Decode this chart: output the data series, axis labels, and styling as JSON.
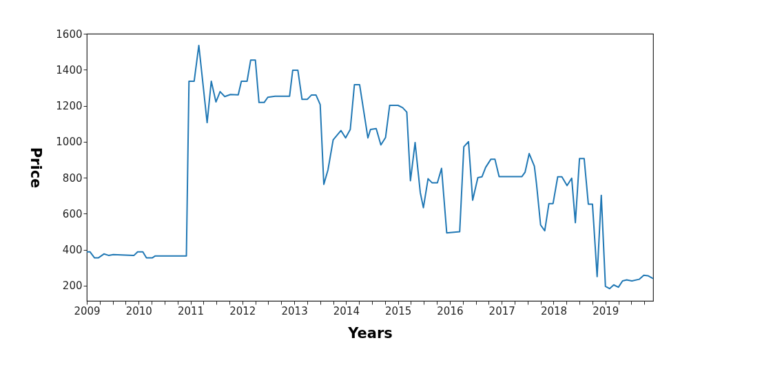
{
  "chart_data": {
    "type": "line",
    "xlabel": "Years",
    "ylabel": "Price",
    "xlim": [
      2009,
      2019.92
    ],
    "ylim": [
      115,
      1600
    ],
    "xticks": [
      2009,
      {
        "value": 2009.25,
        "label": null
      },
      {
        "value": 2009.5,
        "label": null
      },
      {
        "value": 2009.75,
        "label": null
      },
      2010,
      {
        "value": 2010.25,
        "label": null
      },
      {
        "value": 2010.5,
        "label": null
      },
      {
        "value": 2010.75,
        "label": null
      },
      2011,
      {
        "value": 2011.25,
        "label": null
      },
      {
        "value": 2011.5,
        "label": null
      },
      {
        "value": 2011.75,
        "label": null
      },
      2012,
      {
        "value": 2012.25,
        "label": null
      },
      {
        "value": 2012.5,
        "label": null
      },
      {
        "value": 2012.75,
        "label": null
      },
      2013,
      {
        "value": 2013.25,
        "label": null
      },
      {
        "value": 2013.5,
        "label": null
      },
      {
        "value": 2013.75,
        "label": null
      },
      2014,
      {
        "value": 2014.25,
        "label": null
      },
      {
        "value": 2014.5,
        "label": null
      },
      {
        "value": 2014.75,
        "label": null
      },
      2015,
      {
        "value": 2015.25,
        "label": null
      },
      {
        "value": 2015.5,
        "label": null
      },
      {
        "value": 2015.75,
        "label": null
      },
      2016,
      {
        "value": 2016.25,
        "label": null
      },
      {
        "value": 2016.5,
        "label": null
      },
      {
        "value": 2016.75,
        "label": null
      },
      2017,
      {
        "value": 2017.25,
        "label": null
      },
      {
        "value": 2017.5,
        "label": null
      },
      {
        "value": 2017.75,
        "label": null
      },
      2018,
      {
        "value": 2018.25,
        "label": null
      },
      {
        "value": 2018.5,
        "label": null
      },
      {
        "value": 2018.75,
        "label": null
      },
      2019,
      {
        "value": 2019.25,
        "label": null
      },
      {
        "value": 2019.5,
        "label": null
      },
      {
        "value": 2019.75,
        "label": null
      }
    ],
    "yticks": [
      200,
      400,
      600,
      800,
      1000,
      1200,
      1400,
      1600
    ],
    "grid": false,
    "legend": false,
    "marker": "none",
    "line_style": "solid",
    "x": [
      2009.0,
      2009.06,
      2009.15,
      2009.22,
      2009.33,
      2009.42,
      2009.51,
      2009.91,
      2009.98,
      2010.08,
      2010.15,
      2010.26,
      2010.32,
      2010.92,
      2010.97,
      2011.07,
      2011.16,
      2011.32,
      2011.4,
      2011.49,
      2011.57,
      2011.66,
      2011.77,
      2011.92,
      2011.98,
      2012.09,
      2012.16,
      2012.25,
      2012.32,
      2012.42,
      2012.49,
      2012.63,
      2012.91,
      2012.97,
      2013.07,
      2013.15,
      2013.25,
      2013.33,
      2013.42,
      2013.5,
      2013.57,
      2013.65,
      2013.75,
      2013.9,
      2013.99,
      2014.08,
      2014.16,
      2014.26,
      2014.42,
      2014.47,
      2014.58,
      2014.67,
      2014.76,
      2014.84,
      2015.0,
      2015.09,
      2015.17,
      2015.24,
      2015.33,
      2015.43,
      2015.49,
      2015.58,
      2015.66,
      2015.76,
      2015.84,
      2015.94,
      2016.19,
      2016.27,
      2016.36,
      2016.44,
      2016.54,
      2016.62,
      2016.69,
      2016.79,
      2016.87,
      2016.95,
      2017.39,
      2017.45,
      2017.53,
      2017.63,
      2017.67,
      2017.75,
      2017.83,
      2017.91,
      2017.99,
      2018.08,
      2018.16,
      2018.26,
      2018.35,
      2018.42,
      2018.5,
      2018.59,
      2018.67,
      2018.75,
      2018.84,
      2018.92,
      2019.0,
      2019.08,
      2019.16,
      2019.25,
      2019.33,
      2019.41,
      2019.51,
      2019.65,
      2019.74,
      2019.82,
      2019.92
    ],
    "series": [
      {
        "color": "#1f77b4",
        "values": [
          388,
          388,
          354,
          354,
          376,
          368,
          372,
          368,
          388,
          388,
          354,
          354,
          365,
          365,
          1336,
          1336,
          1535,
          1106,
          1336,
          1221,
          1278,
          1251,
          1262,
          1260,
          1336,
          1336,
          1454,
          1454,
          1218,
          1218,
          1247,
          1253,
          1253,
          1397,
          1397,
          1235,
          1235,
          1259,
          1259,
          1206,
          763,
          843,
          1010,
          1062,
          1021,
          1068,
          1317,
          1317,
          1021,
          1068,
          1073,
          982,
          1023,
          1202,
          1202,
          1189,
          1164,
          783,
          995,
          717,
          633,
          794,
          771,
          771,
          852,
          493,
          500,
          972,
          1000,
          675,
          800,
          805,
          857,
          902,
          902,
          806,
          806,
          830,
          934,
          864,
          768,
          537,
          505,
          656,
          656,
          805,
          805,
          756,
          797,
          550,
          906,
          906,
          653,
          653,
          250,
          702,
          196,
          183,
          204,
          191,
          226,
          232,
          226,
          235,
          258,
          255,
          239
        ]
      }
    ]
  }
}
